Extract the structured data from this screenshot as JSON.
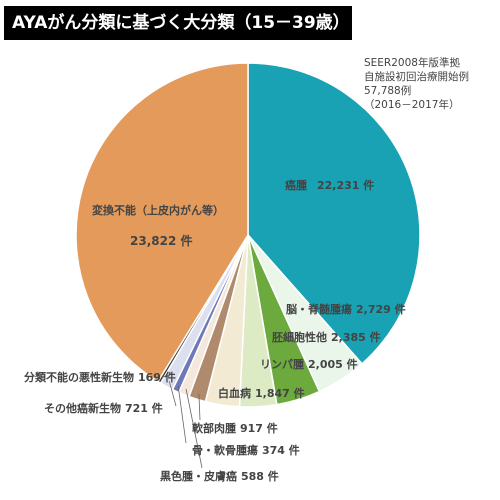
{
  "chart_data": {
    "type": "pie",
    "title": "AYAがん分類に基づく大分類（15－39歳）",
    "note_lines": [
      "SEER2008年版準拠",
      "自施設初回治療開始例",
      "57,788例",
      "（2016－2017年）"
    ],
    "total": 57788,
    "slices": [
      {
        "label": "癌腫",
        "value_text": "22,231 件",
        "value": 22231,
        "color": "#19a2b3"
      },
      {
        "label": "脳・脊髄腫瘍",
        "value_text": "2,729 件",
        "value": 2729,
        "color": "#eaf6ea"
      },
      {
        "label": "胚細胞性他",
        "value_text": "2,385 件",
        "value": 2385,
        "color": "#6caa3e"
      },
      {
        "label": "リンパ腫",
        "value_text": "2,005 件",
        "value": 2005,
        "color": "#dcebc4"
      },
      {
        "label": "白血病",
        "value_text": "1,847 件",
        "value": 1847,
        "color": "#f3ead3"
      },
      {
        "label": "軟部肉腫",
        "value_text": "917 件",
        "value": 917,
        "color": "#b08a6c"
      },
      {
        "label": "黒色腫・皮膚癌",
        "value_text": "588 件",
        "value": 588,
        "color": "#f4e7dc"
      },
      {
        "label": "骨・軟骨腫瘍",
        "value_text": "374 件",
        "value": 374,
        "color": "#6f78b8"
      },
      {
        "label": "その他癌新生物",
        "value_text": "721 件",
        "value": 721,
        "color": "#dcdfee"
      },
      {
        "label": "分類不能の悪性新生物",
        "value_text": "169 件",
        "value": 169,
        "color": "#3f3f3f"
      },
      {
        "label": "変換不能（上皮内がん等）",
        "value_text": "23,822 件",
        "value": 23822,
        "color": "#e39a5b"
      }
    ]
  }
}
